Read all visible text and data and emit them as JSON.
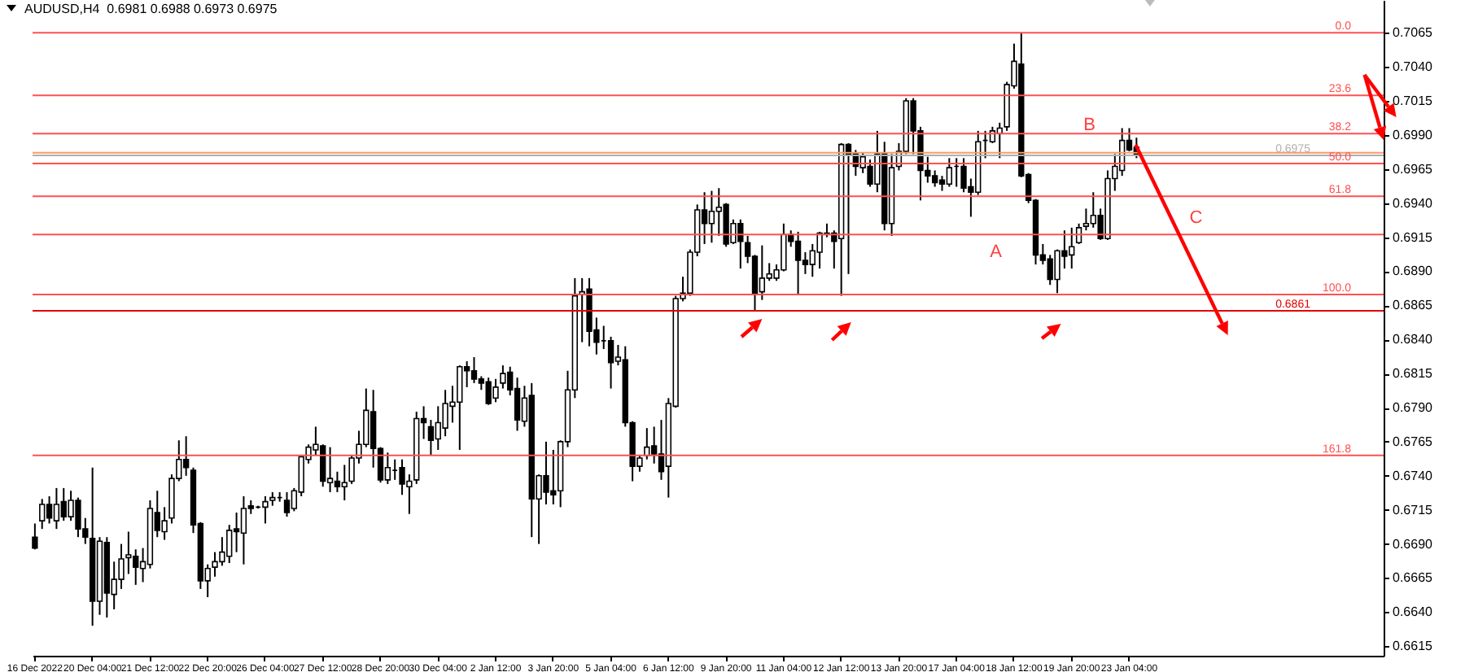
{
  "chart_data": {
    "type": "candlestick",
    "title": "AUDUSD,H4  0.6981 0.6988 0.6973 0.6975",
    "color": "#000000",
    "categories": [
      "16 Dec 2022",
      null,
      null,
      null,
      null,
      null,
      null,
      null,
      "20 Dec 04:00",
      null,
      null,
      null,
      null,
      null,
      null,
      null,
      "21 Dec 12:00",
      null,
      null,
      null,
      null,
      null,
      null,
      null,
      "22 Dec 20:00",
      null,
      null,
      null,
      null,
      null,
      null,
      null,
      "26 Dec 04:00",
      null,
      null,
      null,
      null,
      null,
      null,
      null,
      "27 Dec 12:00",
      null,
      null,
      null,
      null,
      null,
      null,
      null,
      "28 Dec 20:00",
      null,
      null,
      null,
      null,
      null,
      null,
      null,
      "30 Dec 04:00",
      null,
      null,
      null,
      null,
      null,
      null,
      null,
      "2 Jan 12:00",
      null,
      null,
      null,
      null,
      null,
      null,
      null,
      "3 Jan 20:00",
      null,
      null,
      null,
      null,
      null,
      null,
      null,
      "5 Jan 04:00",
      null,
      null,
      null,
      null,
      null,
      null,
      null,
      "6 Jan 12:00",
      null,
      null,
      null,
      null,
      null,
      null,
      null,
      "9 Jan 20:00",
      null,
      null,
      null,
      null,
      null,
      null,
      null,
      "11 Jan 04:00",
      null,
      null,
      null,
      null,
      null,
      null,
      null,
      "12 Jan 12:00",
      null,
      null,
      null,
      null,
      null,
      null,
      null,
      "13 Jan 20:00",
      null,
      null,
      null,
      null,
      null,
      null,
      null,
      "17 Jan 04:00",
      null,
      null,
      null,
      null,
      null,
      null,
      null,
      "18 Jan 12:00",
      null,
      null,
      null,
      null,
      null,
      null,
      null,
      "19 Jan 20:00",
      null,
      null,
      null,
      null,
      null,
      null,
      null,
      "23 Jan 04:00",
      null,
      null,
      null,
      null,
      null,
      null,
      null,
      null,
      null,
      null,
      null,
      null,
      null,
      null,
      null,
      null,
      null,
      null,
      null,
      null,
      null,
      null,
      null,
      null,
      null,
      null,
      null,
      null,
      null,
      null,
      null,
      null,
      null,
      null,
      null
    ],
    "ohlc": [
      [
        0.6695,
        0.6705,
        0.6686,
        0.6687
      ],
      [
        0.6707,
        0.6723,
        0.6701,
        0.6719
      ],
      [
        0.6719,
        0.6725,
        0.6705,
        0.6709
      ],
      [
        0.6707,
        0.6731,
        0.6701,
        0.6719
      ],
      [
        0.6721,
        0.6731,
        0.6707,
        0.671
      ],
      [
        0.671,
        0.6729,
        0.6707,
        0.6722
      ],
      [
        0.6722,
        0.6724,
        0.6695,
        0.6701
      ],
      [
        0.6701,
        0.6709,
        0.669,
        0.6695
      ],
      [
        0.6694,
        0.6746,
        0.663,
        0.6648
      ],
      [
        0.6648,
        0.6695,
        0.6638,
        0.6692
      ],
      [
        0.6691,
        0.6695,
        0.6636,
        0.6654
      ],
      [
        0.6653,
        0.6677,
        0.6642,
        0.6664
      ],
      [
        0.6664,
        0.669,
        0.6657,
        0.6679
      ],
      [
        0.668,
        0.6699,
        0.6668,
        0.6682
      ],
      [
        0.6681,
        0.6686,
        0.666,
        0.6673
      ],
      [
        0.6672,
        0.6687,
        0.6662,
        0.6677
      ],
      [
        0.6675,
        0.6722,
        0.6672,
        0.6716
      ],
      [
        0.6713,
        0.6729,
        0.6695,
        0.67
      ],
      [
        0.6699,
        0.6717,
        0.6693,
        0.6707
      ],
      [
        0.6709,
        0.6741,
        0.6705,
        0.6738
      ],
      [
        0.6738,
        0.6766,
        0.6736,
        0.6752
      ],
      [
        0.6752,
        0.6769,
        0.674,
        0.6746
      ],
      [
        0.6744,
        0.6746,
        0.6698,
        0.6704
      ],
      [
        0.6705,
        0.6706,
        0.6657,
        0.6663
      ],
      [
        0.6663,
        0.6675,
        0.6651,
        0.6672
      ],
      [
        0.6673,
        0.6684,
        0.6666,
        0.6677
      ],
      [
        0.6677,
        0.6695,
        0.6674,
        0.6684
      ],
      [
        0.6681,
        0.6704,
        0.6676,
        0.67
      ],
      [
        0.6701,
        0.6713,
        0.6684,
        0.6699
      ],
      [
        0.6698,
        0.6725,
        0.6675,
        0.6716
      ],
      [
        0.6718,
        0.6722,
        0.6712,
        0.6716
      ],
      [
        0.6717,
        0.6718,
        0.6716,
        0.6717
      ],
      [
        0.6717,
        0.6725,
        0.6705,
        0.6721
      ],
      [
        0.6722,
        0.6728,
        0.6718,
        0.6724
      ],
      [
        0.6724,
        0.6728,
        0.6721,
        0.6724
      ],
      [
        0.6722,
        0.6728,
        0.671,
        0.6713
      ],
      [
        0.6716,
        0.6731,
        0.6714,
        0.6729
      ],
      [
        0.6728,
        0.6755,
        0.6725,
        0.6754
      ],
      [
        0.6752,
        0.6763,
        0.6749,
        0.6761
      ],
      [
        0.6759,
        0.6776,
        0.6755,
        0.6763
      ],
      [
        0.6762,
        0.6763,
        0.6732,
        0.6736
      ],
      [
        0.6735,
        0.6761,
        0.6728,
        0.6738
      ],
      [
        0.6736,
        0.6743,
        0.6728,
        0.6732
      ],
      [
        0.6732,
        0.6748,
        0.6722,
        0.6735
      ],
      [
        0.6736,
        0.6755,
        0.6734,
        0.6753
      ],
      [
        0.6753,
        0.6773,
        0.6749,
        0.6763
      ],
      [
        0.6763,
        0.6804,
        0.6761,
        0.6788
      ],
      [
        0.6787,
        0.6803,
        0.6746,
        0.676
      ],
      [
        0.676,
        0.6761,
        0.6735,
        0.6737
      ],
      [
        0.6737,
        0.6757,
        0.6734,
        0.6746
      ],
      [
        0.6744,
        0.6752,
        0.6737,
        0.6744
      ],
      [
        0.6746,
        0.6752,
        0.6726,
        0.6734
      ],
      [
        0.6732,
        0.6741,
        0.6712,
        0.6736
      ],
      [
        0.6737,
        0.6787,
        0.6734,
        0.6782
      ],
      [
        0.6782,
        0.6791,
        0.6767,
        0.6779
      ],
      [
        0.6776,
        0.6781,
        0.6755,
        0.6766
      ],
      [
        0.6767,
        0.6791,
        0.6759,
        0.6779
      ],
      [
        0.6775,
        0.6803,
        0.6769,
        0.6793
      ],
      [
        0.6791,
        0.6806,
        0.6779,
        0.6794
      ],
      [
        0.6794,
        0.6821,
        0.6759,
        0.682
      ],
      [
        0.682,
        0.6824,
        0.6805,
        0.6817
      ],
      [
        0.6817,
        0.6827,
        0.6808,
        0.6811
      ],
      [
        0.6811,
        0.6813,
        0.6803,
        0.6808
      ],
      [
        0.6809,
        0.6812,
        0.6792,
        0.6793
      ],
      [
        0.6797,
        0.6811,
        0.6794,
        0.6805
      ],
      [
        0.6808,
        0.6821,
        0.6804,
        0.6815
      ],
      [
        0.6816,
        0.682,
        0.6799,
        0.6803
      ],
      [
        0.6804,
        0.6812,
        0.6773,
        0.6781
      ],
      [
        0.678,
        0.6806,
        0.6776,
        0.6797
      ],
      [
        0.6799,
        0.6808,
        0.6695,
        0.6723
      ],
      [
        0.6723,
        0.6741,
        0.669,
        0.674
      ],
      [
        0.674,
        0.6765,
        0.6719,
        0.6728
      ],
      [
        0.6729,
        0.6759,
        0.6719,
        0.6726
      ],
      [
        0.6729,
        0.6766,
        0.6717,
        0.6765
      ],
      [
        0.6765,
        0.6817,
        0.6761,
        0.6803
      ],
      [
        0.6803,
        0.6885,
        0.6797,
        0.6872
      ],
      [
        0.6873,
        0.6885,
        0.6838,
        0.6875
      ],
      [
        0.6877,
        0.6885,
        0.6835,
        0.6846
      ],
      [
        0.6847,
        0.6856,
        0.6829,
        0.6838
      ],
      [
        0.6839,
        0.685,
        0.6833,
        0.6839
      ],
      [
        0.6839,
        0.6842,
        0.6804,
        0.6823
      ],
      [
        0.6824,
        0.6836,
        0.6821,
        0.6827
      ],
      [
        0.6825,
        0.6835,
        0.6776,
        0.6779
      ],
      [
        0.6779,
        0.678,
        0.6736,
        0.6747
      ],
      [
        0.6747,
        0.6755,
        0.6743,
        0.6753
      ],
      [
        0.6755,
        0.6775,
        0.6752,
        0.6761
      ],
      [
        0.6762,
        0.6776,
        0.6749,
        0.6756
      ],
      [
        0.6756,
        0.6781,
        0.6737,
        0.6743
      ],
      [
        0.6747,
        0.6797,
        0.6724,
        0.6793
      ],
      [
        0.6791,
        0.6872,
        0.679,
        0.687
      ],
      [
        0.687,
        0.6886,
        0.6868,
        0.6874
      ],
      [
        0.6874,
        0.6906,
        0.6872,
        0.6904
      ],
      [
        0.6904,
        0.6939,
        0.6901,
        0.6935
      ],
      [
        0.6935,
        0.6948,
        0.691,
        0.6925
      ],
      [
        0.6925,
        0.6949,
        0.6911,
        0.6934
      ],
      [
        0.6934,
        0.6951,
        0.6916,
        0.6937
      ],
      [
        0.6939,
        0.694,
        0.6908,
        0.691
      ],
      [
        0.6911,
        0.6928,
        0.691,
        0.6925
      ],
      [
        0.6925,
        0.6928,
        0.6892,
        0.6912
      ],
      [
        0.6911,
        0.6916,
        0.6896,
        0.6901
      ],
      [
        0.6901,
        0.6902,
        0.6861,
        0.6874
      ],
      [
        0.6875,
        0.6909,
        0.6869,
        0.6885
      ],
      [
        0.6885,
        0.6896,
        0.6883,
        0.6888
      ],
      [
        0.6885,
        0.6895,
        0.6883,
        0.6891
      ],
      [
        0.6891,
        0.6925,
        0.689,
        0.6917
      ],
      [
        0.6917,
        0.692,
        0.6908,
        0.6912
      ],
      [
        0.6912,
        0.6919,
        0.6873,
        0.6898
      ],
      [
        0.6898,
        0.6904,
        0.6888,
        0.6895
      ],
      [
        0.6895,
        0.691,
        0.6886,
        0.6905
      ],
      [
        0.6904,
        0.6919,
        0.6892,
        0.6918
      ],
      [
        0.6917,
        0.6925,
        0.6915,
        0.6918
      ],
      [
        0.6918,
        0.692,
        0.6892,
        0.6912
      ],
      [
        0.6914,
        0.6984,
        0.6872,
        0.6983
      ],
      [
        0.6983,
        0.6984,
        0.6888,
        0.6976
      ],
      [
        0.6976,
        0.6979,
        0.696,
        0.6967
      ],
      [
        0.6966,
        0.6977,
        0.6962,
        0.6974
      ],
      [
        0.6967,
        0.6972,
        0.6952,
        0.6954
      ],
      [
        0.6954,
        0.6993,
        0.6948,
        0.6976
      ],
      [
        0.6976,
        0.6985,
        0.692,
        0.6925
      ],
      [
        0.6925,
        0.6976,
        0.6916,
        0.6966
      ],
      [
        0.6967,
        0.6984,
        0.6964,
        0.6978
      ],
      [
        0.6978,
        0.7017,
        0.6976,
        0.7015
      ],
      [
        0.7015,
        0.7017,
        0.6976,
        0.6993
      ],
      [
        0.6993,
        0.6996,
        0.6942,
        0.6964
      ],
      [
        0.6964,
        0.6974,
        0.6955,
        0.696
      ],
      [
        0.696,
        0.6964,
        0.6952,
        0.6955
      ],
      [
        0.6957,
        0.696,
        0.6949,
        0.6954
      ],
      [
        0.6954,
        0.6973,
        0.6952,
        0.6966
      ],
      [
        0.6967,
        0.6973,
        0.6952,
        0.6967
      ],
      [
        0.6967,
        0.6973,
        0.6948,
        0.6951
      ],
      [
        0.6952,
        0.6958,
        0.693,
        0.6948
      ],
      [
        0.6948,
        0.6993,
        0.6946,
        0.6985
      ],
      [
        0.6986,
        0.6993,
        0.6973,
        0.6986
      ],
      [
        0.6985,
        0.6996,
        0.6984,
        0.6993
      ],
      [
        0.6991,
        0.6999,
        0.6973,
        0.6995
      ],
      [
        0.6996,
        0.7029,
        0.6993,
        0.7027
      ],
      [
        0.7026,
        0.7057,
        0.7024,
        0.7044
      ],
      [
        0.7042,
        0.7065,
        0.6959,
        0.696
      ],
      [
        0.6961,
        0.6962,
        0.694,
        0.6942
      ],
      [
        0.6942,
        0.6943,
        0.6895,
        0.6902
      ],
      [
        0.6902,
        0.691,
        0.6895,
        0.6898
      ],
      [
        0.6899,
        0.6902,
        0.688,
        0.6884
      ],
      [
        0.6884,
        0.6906,
        0.6874,
        0.6905
      ],
      [
        0.6905,
        0.692,
        0.6892,
        0.6901
      ],
      [
        0.6902,
        0.6922,
        0.6892,
        0.6908
      ],
      [
        0.6911,
        0.6925,
        0.691,
        0.6922
      ],
      [
        0.6923,
        0.6936,
        0.692,
        0.6925
      ],
      [
        0.6925,
        0.6948,
        0.6922,
        0.6931
      ],
      [
        0.6931,
        0.6936,
        0.6913,
        0.6914
      ],
      [
        0.6914,
        0.6964,
        0.6913,
        0.6958
      ],
      [
        0.6958,
        0.6976,
        0.6949,
        0.6967
      ],
      [
        0.6964,
        0.6995,
        0.696,
        0.6986
      ],
      [
        0.6986,
        0.6995,
        0.6978,
        0.6979
      ],
      [
        0.6981,
        0.6988,
        0.6973,
        0.6975
      ],
      null,
      null,
      null,
      null,
      null,
      null,
      null,
      null,
      null,
      null,
      null,
      null,
      null,
      null,
      null,
      null,
      null,
      null,
      null,
      null,
      null,
      null,
      null,
      null,
      null,
      null,
      null,
      null,
      null,
      null,
      null,
      null,
      null,
      null
    ],
    "ylim": [
      0.6608,
      0.7089
    ],
    "yticks": [
      0.6615,
      {
        "value": 0.664,
        "label": "0.6640"
      },
      0.6665,
      {
        "value": 0.669,
        "label": "0.6690"
      },
      0.6715,
      {
        "value": 0.674,
        "label": "0.6740"
      },
      0.6765,
      {
        "value": 0.679,
        "label": "0.6790"
      },
      0.6815,
      {
        "value": 0.684,
        "label": "0.6840"
      },
      0.6865,
      {
        "value": 0.689,
        "label": "0.6890"
      },
      0.6915,
      {
        "value": 0.694,
        "label": "0.6940"
      },
      0.6965,
      {
        "value": 0.699,
        "label": "0.6990"
      },
      0.7015,
      {
        "value": 0.704,
        "label": "0.7040"
      },
      0.7065
    ],
    "ref_lines": [
      {
        "axis": "y",
        "value": 0.6861,
        "label": "0.6861",
        "color": "#e00000"
      },
      {
        "axis": "y",
        "value": 0.6977,
        "color": "#ff9966"
      },
      {
        "axis": "y",
        "value": 0.6975,
        "label": "0.6975",
        "color": "#b0b0b0"
      },
      {
        "axis": "y",
        "value": 0.7065,
        "color": "#ff5050"
      },
      {
        "axis": "y",
        "value": 0.7019,
        "color": "#ff5050"
      },
      {
        "axis": "y",
        "value": 0.6991,
        "color": "#ff5050"
      },
      {
        "axis": "y",
        "value": 0.6969,
        "color": "#ff5050"
      },
      {
        "axis": "y",
        "value": 0.6945,
        "color": "#ff5050"
      },
      {
        "axis": "y",
        "value": 0.6917,
        "color": "#ff5050"
      },
      {
        "axis": "y",
        "value": 0.6873,
        "color": "#ff5050"
      },
      {
        "axis": "y",
        "value": 0.6755,
        "color": "#ff5050"
      }
    ],
    "annotations": [
      "A",
      "B",
      "C",
      {
        "text": "0.0",
        "y": 0.7065
      },
      {
        "text": "23.6",
        "y": 0.7019
      },
      {
        "text": "38.2",
        "y": 0.6991
      },
      {
        "text": "50.0",
        "y": 0.6969
      },
      {
        "text": "61.8",
        "y": 0.6945
      },
      {
        "text": "100.0",
        "y": 0.6873
      },
      {
        "text": "161.8",
        "y": 0.6755
      }
    ]
  }
}
